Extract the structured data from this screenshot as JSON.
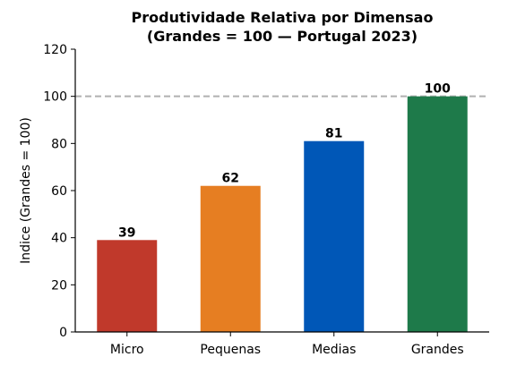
{
  "chart_data": {
    "type": "bar",
    "title": "Produtividade Relativa por Dimensao",
    "subtitle": "(Grandes = 100 — Portugal 2023)",
    "xlabel": "",
    "ylabel": "Indice (Grandes = 100)",
    "categories": [
      "Micro",
      "Pequenas",
      "Medias",
      "Grandes"
    ],
    "values": [
      39,
      62,
      81,
      100
    ],
    "data_labels": [
      "39",
      "62",
      "81",
      "100"
    ],
    "colors": [
      "#c0392b",
      "#e67e22",
      "#0057b7",
      "#1e7a4a"
    ],
    "ylim": [
      0,
      120
    ],
    "yticks": [
      0,
      20,
      40,
      60,
      80,
      100,
      120
    ],
    "reference_line": {
      "value": 100,
      "style": "dashed",
      "color": "#b0b0b0"
    },
    "grid": false,
    "legend": "none"
  }
}
